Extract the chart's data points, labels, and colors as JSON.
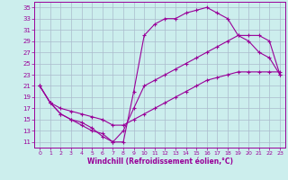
{
  "xlabel": "Windchill (Refroidissement éolien,°C)",
  "bg_color": "#cceeed",
  "grid_color": "#aabbcc",
  "line_color": "#990099",
  "xlim": [
    -0.5,
    23.5
  ],
  "ylim": [
    10,
    36
  ],
  "xticks": [
    0,
    1,
    2,
    3,
    4,
    5,
    6,
    7,
    8,
    9,
    10,
    11,
    12,
    13,
    14,
    15,
    16,
    17,
    18,
    19,
    20,
    21,
    22,
    23
  ],
  "yticks": [
    11,
    13,
    15,
    17,
    19,
    21,
    23,
    25,
    27,
    29,
    31,
    33,
    35
  ],
  "curve1_x": [
    0,
    1,
    2,
    3,
    4,
    5,
    6,
    7,
    8,
    9,
    10,
    11,
    12,
    13,
    14,
    15,
    16,
    17,
    18,
    19,
    20,
    21,
    22,
    23
  ],
  "curve1_y": [
    21,
    18,
    16,
    15,
    14.5,
    13.5,
    12,
    11,
    11,
    20,
    30,
    32,
    33,
    33,
    34,
    34.5,
    35,
    34,
    33,
    30,
    29,
    27,
    26,
    23
  ],
  "curve2_x": [
    0,
    1,
    2,
    3,
    4,
    5,
    6,
    7,
    8,
    9,
    10,
    11,
    12,
    13,
    14,
    15,
    16,
    17,
    18,
    19,
    20,
    21,
    22,
    23
  ],
  "curve2_y": [
    21,
    18,
    16,
    15,
    14,
    13,
    12.5,
    11,
    13,
    17,
    21,
    22,
    23,
    24,
    25,
    26,
    27,
    28,
    29,
    30,
    30,
    30,
    29,
    23
  ],
  "curve3_x": [
    0,
    1,
    2,
    3,
    4,
    5,
    6,
    7,
    8,
    9,
    10,
    11,
    12,
    13,
    14,
    15,
    16,
    17,
    18,
    19,
    20,
    21,
    22,
    23
  ],
  "curve3_y": [
    21,
    18,
    17,
    16.5,
    16,
    15.5,
    15,
    14,
    14,
    15,
    16,
    17,
    18,
    19,
    20,
    21,
    22,
    22.5,
    23,
    23.5,
    23.5,
    23.5,
    23.5,
    23.5
  ]
}
